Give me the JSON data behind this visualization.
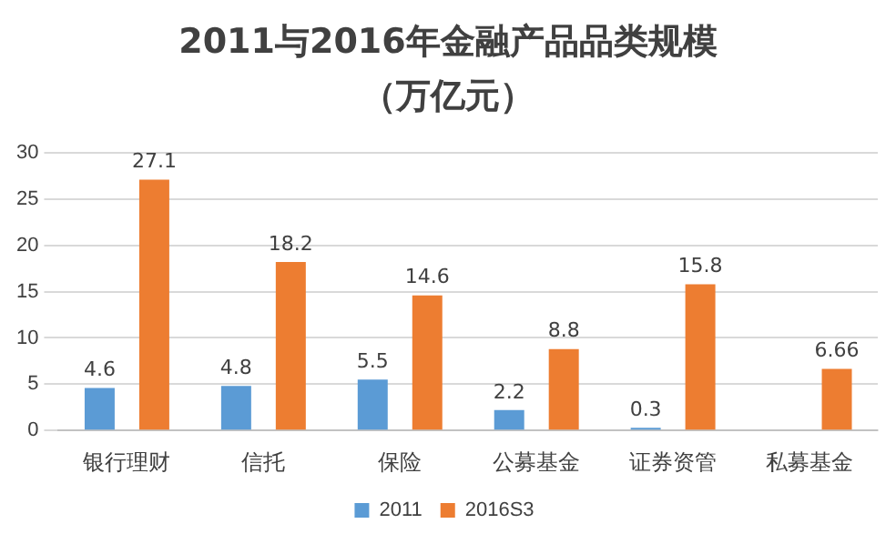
{
  "chart_data": {
    "type": "bar",
    "title": "2011与2016年金融产品品类规模（万亿元）",
    "categories": [
      "银行理财",
      "信托",
      "保险",
      "公募基金",
      "证券资管",
      "私募基金"
    ],
    "series": [
      {
        "name": "2011",
        "color": "#5b9bd5",
        "values": [
          4.6,
          4.8,
          5.5,
          2.2,
          0.3,
          null
        ]
      },
      {
        "name": "2016S3",
        "color": "#ed7d31",
        "values": [
          27.1,
          18.2,
          14.6,
          8.8,
          15.8,
          6.66
        ]
      }
    ],
    "ylim": [
      0,
      30
    ],
    "yticks": [
      0,
      5,
      10,
      15,
      20,
      25,
      30
    ],
    "grid": "y",
    "legend": "bottom",
    "data_labels": true
  }
}
